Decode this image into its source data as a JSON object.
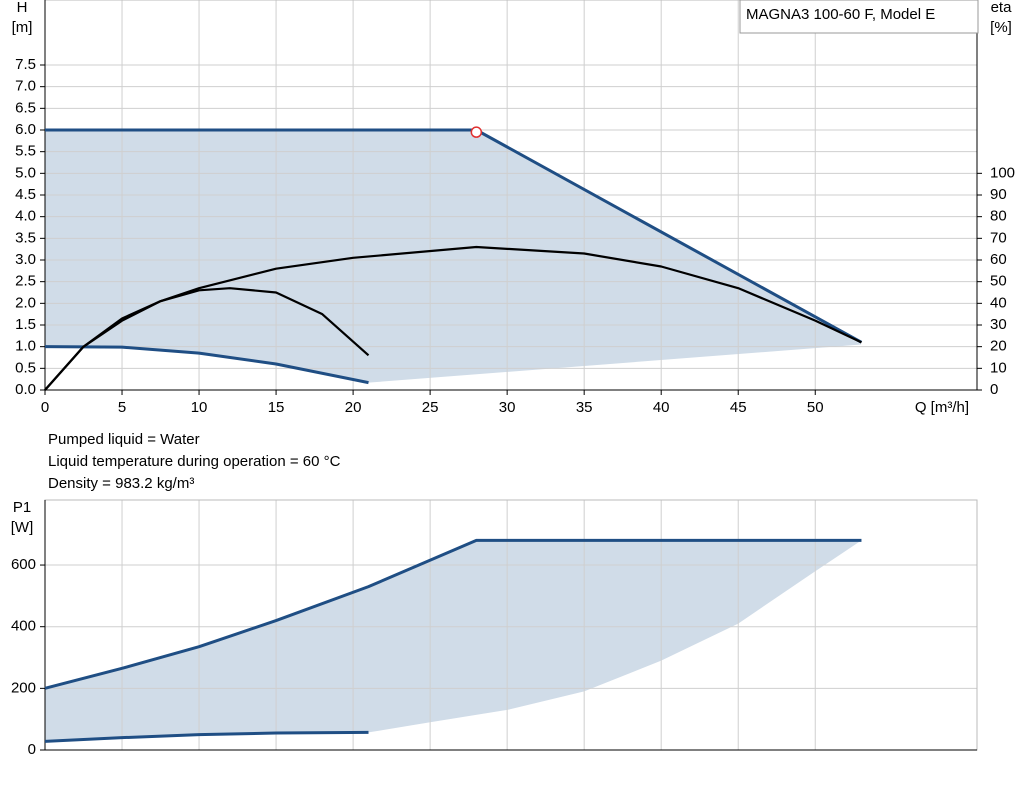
{
  "chart_data": [
    {
      "type": "line",
      "annotation": "MAGNA3 100-60 F, Model E",
      "ylabel": [
        "H",
        "[m]"
      ],
      "y2label": [
        "eta",
        "[%]"
      ],
      "xlabel": "Q [m³/h]",
      "xlim": [
        0,
        60.5
      ],
      "xticks": [
        0,
        5,
        10,
        15,
        20,
        25,
        30,
        35,
        40,
        45,
        50
      ],
      "ylim": [
        0,
        9
      ],
      "yticks": [
        {
          "value": 0,
          "label": "0.0"
        },
        0.5,
        {
          "value": 1,
          "label": "1.0"
        },
        1.5,
        {
          "value": 2,
          "label": "2.0"
        },
        2.5,
        {
          "value": 3,
          "label": "3.0"
        },
        3.5,
        {
          "value": 4,
          "label": "4.0"
        },
        4.5,
        {
          "value": 5,
          "label": "5.0"
        },
        5.5,
        {
          "value": 6,
          "label": "6.0"
        },
        6.5,
        {
          "value": 7,
          "label": "7.0"
        },
        7.5
      ],
      "y2lim": [
        0,
        180
      ],
      "y2ticks": [
        0,
        10,
        20,
        30,
        40,
        50,
        60,
        70,
        80,
        90,
        100
      ],
      "grid": true,
      "area": {
        "color": "#d0dce8",
        "x": [
          0,
          28,
          53,
          21,
          15,
          10,
          5,
          0
        ],
        "values": [
          6,
          6,
          1.05,
          0.17,
          0.6,
          0.85,
          0.99,
          1.0
        ]
      },
      "series": [
        {
          "color": "#1f4e84",
          "x": [
            0,
            28,
            53
          ],
          "values": [
            6,
            6,
            1.1
          ]
        },
        {
          "color": "#1f4e84",
          "x": [
            0,
            5,
            10,
            15,
            21
          ],
          "values": [
            1.0,
            0.99,
            0.85,
            0.6,
            0.17
          ]
        },
        {
          "color": "#000000",
          "axis": "y2",
          "x": [
            0,
            2.5,
            5,
            7.5,
            10,
            15,
            20,
            28,
            35,
            40,
            45,
            50,
            53
          ],
          "values": [
            0,
            20,
            33,
            41,
            47,
            56,
            61,
            66,
            63,
            57,
            47,
            32,
            22
          ]
        },
        {
          "color": "#000000",
          "axis": "y2",
          "x": [
            0,
            2.5,
            5,
            7.5,
            10,
            12,
            15,
            18,
            21
          ],
          "values": [
            0,
            20,
            32,
            41,
            46,
            47,
            45,
            35,
            16
          ]
        }
      ],
      "point": {
        "x": 28,
        "y": 5.95,
        "color": "#e03030"
      }
    },
    {
      "type": "line",
      "ylabel": [
        "P1",
        "[W]"
      ],
      "xlim": [
        0,
        60.5
      ],
      "ylim": [
        0,
        811
      ],
      "yticks": [
        0,
        200,
        400,
        600
      ],
      "grid": true,
      "area": {
        "color": "#d0dce8",
        "x": [
          0,
          5,
          10,
          15,
          21,
          28,
          53,
          50,
          45,
          40,
          35,
          30,
          25,
          21,
          15,
          10,
          5,
          0
        ],
        "values": [
          200,
          265,
          335,
          420,
          530,
          680,
          680,
          580,
          410,
          290,
          190,
          130,
          90,
          57,
          55,
          50,
          40,
          28
        ]
      },
      "series": [
        {
          "color": "#1f4e84",
          "x": [
            0,
            5,
            10,
            15,
            21,
            28,
            53
          ],
          "values": [
            200,
            265,
            335,
            420,
            530,
            680,
            680
          ]
        },
        {
          "color": "#1f4e84",
          "x": [
            0,
            5,
            10,
            15,
            21
          ],
          "values": [
            28,
            40,
            50,
            55,
            57
          ]
        }
      ]
    }
  ],
  "info_lines": [
    "Pumped liquid = Water",
    "Liquid temperature during operation = 60 °C",
    "Density = 983.2 kg/m³"
  ]
}
